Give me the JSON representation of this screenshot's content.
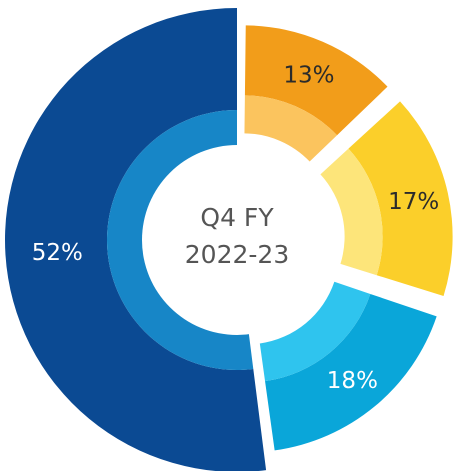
{
  "chart_data": {
    "type": "donut",
    "center_label": [
      "Q4 FY",
      "2022-23"
    ],
    "values": [
      13,
      17,
      18,
      52
    ],
    "value_labels": [
      "13%",
      "17%",
      "18%",
      "52%"
    ],
    "colors": [
      "#f29d1a",
      "#fbcf2a",
      "#0aa6d9",
      "#0b4a93"
    ],
    "inner_colors": [
      "#fbc45e",
      "#fde57a",
      "#2fc4ee",
      "#1786c7"
    ],
    "label_colors": [
      "#2b2b2b",
      "#2b2b2b",
      "#ffffff",
      "#ffffff"
    ]
  }
}
